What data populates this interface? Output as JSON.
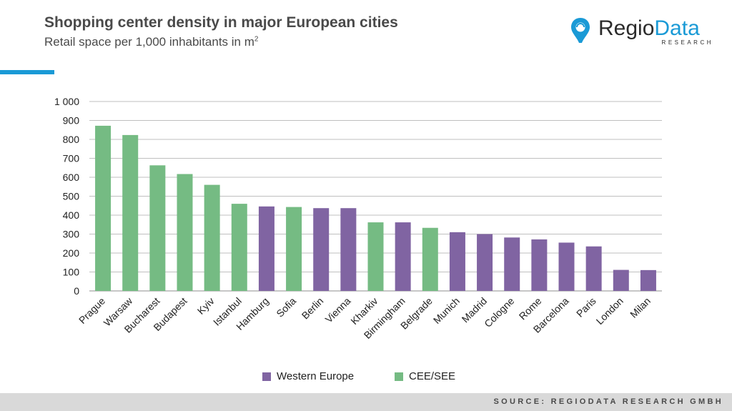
{
  "header": {
    "title": "Shopping center density in major European cities",
    "subtitle": "Retail space per 1,000 inhabitants in m",
    "subtitle_sup": "2"
  },
  "logo": {
    "name_part1": "Regio",
    "name_part2": "Data",
    "tagline": "RESEARCH",
    "icon": "map-pin-icon"
  },
  "colors": {
    "western_europe": "#8064a2",
    "cee_see": "#75bb83",
    "accent": "#1a9ad6",
    "grid": "#bfbfbf"
  },
  "footer": {
    "source": "SOURCE: REGIODATA RESEARCH GMBH"
  },
  "chart_data": {
    "type": "bar",
    "title": "",
    "xlabel": "",
    "ylabel": "",
    "ylim": [
      0,
      1000
    ],
    "yticks": [
      0,
      100,
      200,
      300,
      400,
      500,
      600,
      700,
      800,
      900,
      1000
    ],
    "ytick_labels": [
      "0",
      "100",
      "200",
      "300",
      "400",
      "500",
      "600",
      "700",
      "800",
      "900",
      "1 000"
    ],
    "grid": true,
    "legend_position": "bottom",
    "categories": [
      "Prague",
      "Warsaw",
      "Bucharest",
      "Budapest",
      "Kyiv",
      "Istanbul",
      "Hamburg",
      "Sofia",
      "Berlin",
      "Vienna",
      "Kharkiv",
      "Birmingham",
      "Belgrade",
      "Munich",
      "Madrid",
      "Cologne",
      "Rome",
      "Barcelona",
      "Paris",
      "London",
      "Milan"
    ],
    "values": [
      872,
      823,
      663,
      617,
      560,
      460,
      446,
      443,
      437,
      437,
      362,
      362,
      333,
      310,
      300,
      282,
      272,
      255,
      235,
      111,
      110
    ],
    "groups": [
      "CEE/SEE",
      "CEE/SEE",
      "CEE/SEE",
      "CEE/SEE",
      "CEE/SEE",
      "CEE/SEE",
      "Western Europe",
      "CEE/SEE",
      "Western Europe",
      "Western Europe",
      "CEE/SEE",
      "Western Europe",
      "CEE/SEE",
      "Western Europe",
      "Western Europe",
      "Western Europe",
      "Western Europe",
      "Western Europe",
      "Western Europe",
      "Western Europe",
      "Western Europe"
    ],
    "legend": [
      "Western Europe",
      "CEE/SEE"
    ]
  }
}
